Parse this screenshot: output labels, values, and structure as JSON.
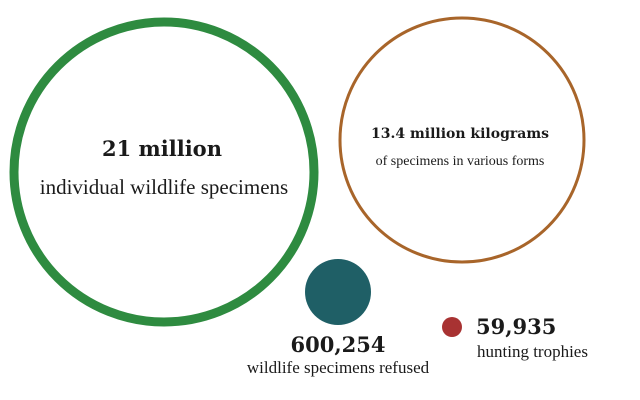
{
  "chart_data": {
    "type": "bubble",
    "bubbles": [
      {
        "id": "specimens",
        "value_label": "21 million",
        "caption": "individual wildlife specimens",
        "color": "#2e8b40",
        "style": "ring"
      },
      {
        "id": "kilograms",
        "value_label": "13.4 million kilograms",
        "caption": "of specimens in various forms",
        "color": "#a8652a",
        "style": "ring"
      },
      {
        "id": "refused",
        "value_label": "600,254",
        "caption": "wildlife specimens refused",
        "color": "#1f5f66",
        "style": "filled"
      },
      {
        "id": "trophies",
        "value_label": "59,935",
        "caption": "hunting trophies",
        "color": "#a83232",
        "style": "filled"
      }
    ]
  }
}
